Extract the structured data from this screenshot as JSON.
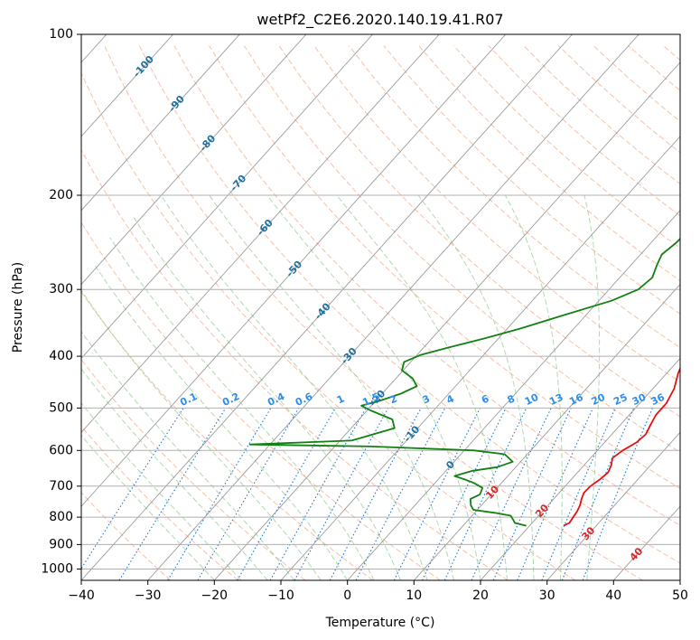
{
  "chart_data": {
    "type": "line",
    "subtype": "skew-t log-p diagram",
    "title": "wetPf2_C2E6.2020.140.19.41.R07",
    "xlabel": "Temperature (°C)",
    "ylabel": "Pressure (hPa)",
    "xlim": [
      -40,
      50
    ],
    "ylim": [
      1050,
      100
    ],
    "x_ticks": [
      -40,
      -30,
      -20,
      -10,
      0,
      10,
      20,
      30,
      40,
      50
    ],
    "y_ticks": [
      100,
      200,
      300,
      400,
      500,
      600,
      700,
      800,
      900,
      1000
    ],
    "grid": true,
    "colors": {
      "temperature": "#e8100f",
      "dewpoint": "#128012",
      "dry_adiabat": "#f4a582",
      "moist_adiabat": "#8fc98f",
      "mixing_ratio": "#1f77d4",
      "isotherm": "#8a8a8a",
      "mixing_label": "#2e8ee8",
      "isotherm_label": "#1f6f9f",
      "dry_label": "#d62728"
    },
    "series": [
      {
        "name": "Temperature",
        "points": [
          [
            25.1,
            830
          ],
          [
            25.6,
            820
          ],
          [
            25.4,
            800
          ],
          [
            25.2,
            780
          ],
          [
            24.8,
            760
          ],
          [
            24.2,
            740
          ],
          [
            23.7,
            720
          ],
          [
            23.8,
            700
          ],
          [
            24.3,
            680
          ],
          [
            24.6,
            660
          ],
          [
            24.1,
            640
          ],
          [
            23.3,
            620
          ],
          [
            23.8,
            600
          ],
          [
            24.8,
            580
          ],
          [
            25.1,
            560
          ],
          [
            24.6,
            540
          ],
          [
            24.0,
            515
          ],
          [
            24.0,
            490
          ],
          [
            23.2,
            460
          ],
          [
            21.7,
            430
          ],
          [
            20.5,
            400
          ],
          [
            18.4,
            370
          ],
          [
            16.2,
            345
          ],
          [
            15.1,
            320
          ],
          [
            14.2,
            300
          ],
          [
            12.5,
            280
          ],
          [
            10.2,
            260
          ],
          [
            7.2,
            240
          ],
          [
            3.6,
            220
          ],
          [
            0.2,
            200
          ],
          [
            -3.5,
            180
          ],
          [
            -8.2,
            160
          ],
          [
            -11.5,
            145
          ],
          [
            -12.2,
            130
          ],
          [
            -11.3,
            120
          ],
          [
            -10.6,
            110
          ],
          [
            -10.5,
            100
          ]
        ]
      },
      {
        "name": "Dewpoint",
        "points": [
          [
            19.5,
            830
          ],
          [
            17.4,
            820
          ],
          [
            16.8,
            810
          ],
          [
            15.8,
            795
          ],
          [
            13.0,
            785
          ],
          [
            9.4,
            775
          ],
          [
            8.4,
            760
          ],
          [
            7.5,
            740
          ],
          [
            8.3,
            725
          ],
          [
            7.8,
            705
          ],
          [
            5.8,
            690
          ],
          [
            4.0,
            680
          ],
          [
            2.0,
            670
          ],
          [
            4.0,
            655
          ],
          [
            7.2,
            645
          ],
          [
            8.8,
            630
          ],
          [
            6.6,
            610
          ],
          [
            1.5,
            600
          ],
          [
            -14.5,
            590
          ],
          [
            -33.0,
            585
          ],
          [
            -18.2,
            575
          ],
          [
            -13.5,
            545
          ],
          [
            -15.0,
            525
          ],
          [
            -19.5,
            505
          ],
          [
            -21.5,
            495
          ],
          [
            -19.5,
            485
          ],
          [
            -17.2,
            470
          ],
          [
            -15.8,
            455
          ],
          [
            -17.5,
            440
          ],
          [
            -20.2,
            425
          ],
          [
            -21.0,
            410
          ],
          [
            -19.5,
            398
          ],
          [
            -16.2,
            385
          ],
          [
            -12.0,
            370
          ],
          [
            -8.0,
            355
          ],
          [
            -3.3,
            335
          ],
          [
            1.9,
            315
          ],
          [
            4.4,
            300
          ],
          [
            4.9,
            285
          ],
          [
            3.9,
            270
          ],
          [
            3.2,
            258
          ],
          [
            3.8,
            245
          ],
          [
            3.9,
            230
          ],
          [
            3.2,
            215
          ],
          [
            1.2,
            200
          ],
          [
            -1.5,
            185
          ],
          [
            -5.0,
            170
          ],
          [
            -9.2,
            155
          ],
          [
            -12.0,
            140
          ],
          [
            -14.2,
            130
          ],
          [
            -15.3,
            125
          ],
          [
            -16.8,
            120
          ],
          [
            -18.6,
            115
          ],
          [
            -19.7,
            110
          ],
          [
            -20.2,
            105
          ],
          [
            -20.2,
            100
          ]
        ]
      }
    ],
    "isotherm_labels": [
      "-100",
      "-90",
      "-80",
      "-70",
      "-60",
      "-50",
      "-40",
      "-30",
      "-20",
      "-10",
      "0",
      "10",
      "20",
      "30",
      "40"
    ],
    "mixing_ratio_labels": [
      "0.1",
      "0.2",
      "0.4",
      "0.6",
      "1",
      "1.5",
      "2",
      "3",
      "4",
      "6",
      "8",
      "10",
      "13",
      "16",
      "20",
      "25",
      "30",
      "36"
    ]
  }
}
